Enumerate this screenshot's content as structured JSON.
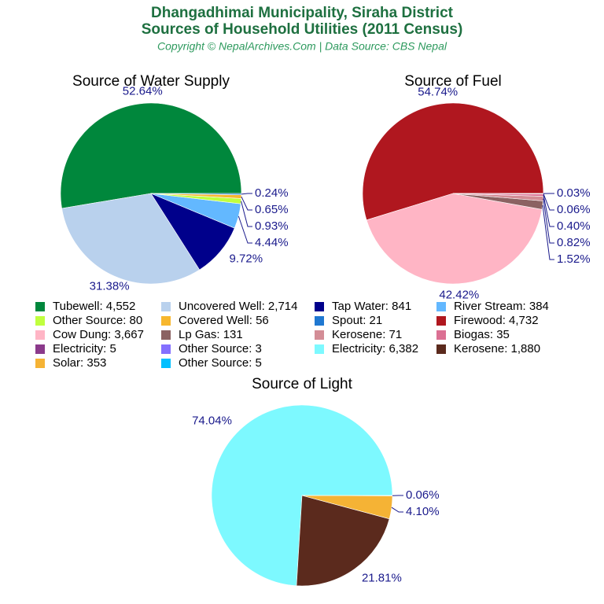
{
  "header": {
    "title_lines": [
      "Dhangadhimai Municipality, Siraha District",
      "Sources of Household Utilities (2011 Census)"
    ],
    "subtitle": "Copyright © NepalArchives.Com | Data Source: CBS Nepal"
  },
  "chart_data": [
    {
      "type": "pie",
      "title": "Source of Water Supply",
      "categories": [
        "Tubewell: 4,552",
        "Uncovered Well: 2,714",
        "Tap Water: 841",
        "River Stream: 384",
        "Other Source: 80",
        "Covered Well: 56",
        "Spout: 21"
      ],
      "values": [
        52.64,
        31.38,
        9.72,
        4.44,
        0.93,
        0.65,
        0.24
      ],
      "value_labels": [
        "52.64%",
        "31.38%",
        "9.72%",
        "4.44%",
        "0.93%",
        "0.65%",
        "0.24%"
      ],
      "colors": [
        "#00873c",
        "#b9d1ed",
        "#00008b",
        "#63b8ff",
        "#c0ff3e",
        "#f7b72e",
        "#1f78d1"
      ]
    },
    {
      "type": "pie",
      "title": "Source of Fuel",
      "categories": [
        "Firewood: 4,732",
        "Cow Dung: 3,667",
        "Lp Gas: 131",
        "Kerosene: 71",
        "Biogas: 35",
        "Electricity: 5",
        "Other Source: 3"
      ],
      "values": [
        54.74,
        42.42,
        1.52,
        0.82,
        0.4,
        0.06,
        0.03
      ],
      "value_labels": [
        "54.74%",
        "42.42%",
        "1.52%",
        "0.82%",
        "0.40%",
        "0.06%",
        "0.03%"
      ],
      "colors": [
        "#b0171f",
        "#ffb5c5",
        "#8b6262",
        "#d38d96",
        "#db7093",
        "#8b3a8b",
        "#8470ff"
      ]
    },
    {
      "type": "pie",
      "title": "Source of Light",
      "categories": [
        "Electricity: 6,382",
        "Kerosene: 1,880",
        "Solar: 353",
        "Other Source: 5"
      ],
      "values": [
        74.04,
        21.81,
        4.1,
        0.06
      ],
      "value_labels": [
        "74.04%",
        "21.81%",
        "4.10%",
        "0.06%"
      ],
      "colors": [
        "#7df9ff",
        "#5b2a1d",
        "#f5b335",
        "#00bfff"
      ]
    }
  ]
}
